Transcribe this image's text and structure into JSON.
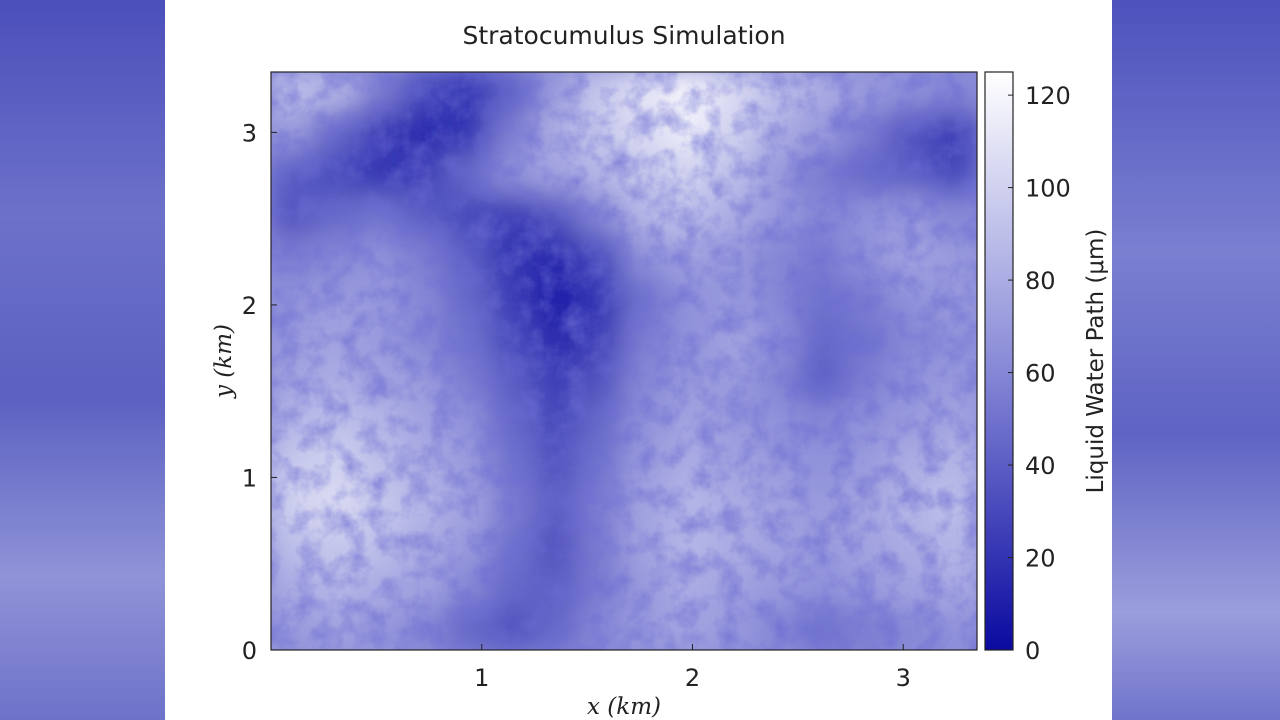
{
  "chart_data": {
    "type": "heatmap",
    "title": "Stratocumulus Simulation",
    "xlabel": "x (km)",
    "ylabel": "y (km)",
    "x_ticks": [
      1,
      2,
      3
    ],
    "y_ticks": [
      0,
      1,
      2,
      3
    ],
    "xlim": [
      0,
      3.35
    ],
    "ylim": [
      0,
      3.35
    ],
    "colorbar": {
      "label": "Liquid Water Path (μm)",
      "ticks": [
        0,
        20,
        40,
        60,
        80,
        100,
        120
      ],
      "range": [
        0,
        125
      ],
      "colors": {
        "low": "#0a0aa0",
        "mid": "#8a8cd8",
        "high": "#ffffff"
      }
    },
    "grid": false,
    "field": [
      [
        90,
        85,
        55,
        30,
        20,
        40,
        70,
        95,
        110,
        120,
        105,
        90,
        80,
        70,
        65,
        60
      ],
      [
        70,
        45,
        25,
        15,
        20,
        55,
        80,
        95,
        105,
        115,
        100,
        80,
        70,
        55,
        35,
        25
      ],
      [
        40,
        30,
        20,
        25,
        45,
        65,
        75,
        85,
        95,
        100,
        90,
        70,
        55,
        45,
        40,
        30
      ],
      [
        35,
        45,
        50,
        40,
        30,
        25,
        35,
        60,
        85,
        90,
        80,
        70,
        60,
        65,
        70,
        60
      ],
      [
        55,
        60,
        65,
        55,
        40,
        20,
        15,
        30,
        65,
        75,
        70,
        60,
        55,
        65,
        75,
        70
      ],
      [
        65,
        70,
        70,
        60,
        45,
        25,
        10,
        20,
        50,
        65,
        70,
        60,
        50,
        55,
        65,
        70
      ],
      [
        70,
        75,
        70,
        60,
        50,
        30,
        15,
        25,
        55,
        65,
        75,
        65,
        45,
        50,
        60,
        65
      ],
      [
        75,
        80,
        75,
        70,
        55,
        40,
        25,
        35,
        60,
        70,
        70,
        60,
        40,
        55,
        65,
        70
      ],
      [
        85,
        90,
        85,
        75,
        65,
        45,
        30,
        45,
        65,
        75,
        70,
        65,
        60,
        65,
        70,
        75
      ],
      [
        95,
        100,
        90,
        80,
        70,
        50,
        35,
        50,
        70,
        80,
        75,
        70,
        65,
        70,
        80,
        85
      ],
      [
        100,
        105,
        95,
        85,
        75,
        55,
        40,
        55,
        75,
        85,
        80,
        75,
        70,
        75,
        85,
        90
      ],
      [
        90,
        95,
        90,
        80,
        70,
        50,
        35,
        55,
        75,
        85,
        80,
        75,
        70,
        75,
        80,
        85
      ],
      [
        80,
        85,
        80,
        75,
        60,
        45,
        40,
        55,
        70,
        80,
        75,
        70,
        65,
        70,
        75,
        80
      ],
      [
        70,
        75,
        70,
        60,
        45,
        35,
        45,
        60,
        70,
        75,
        70,
        60,
        50,
        55,
        60,
        65
      ]
    ]
  }
}
